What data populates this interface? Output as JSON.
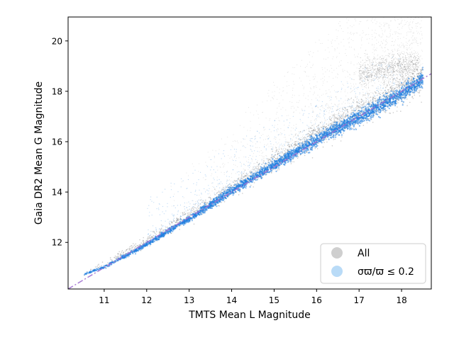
{
  "chart_data": {
    "type": "scatter",
    "title": "",
    "xlabel": "TMTS Mean L Magnitude",
    "ylabel": "Gaia DR2 Mean G Magnitude",
    "xlim": [
      10.15,
      18.7
    ],
    "ylim": [
      10.15,
      20.95
    ],
    "xticks": [
      11,
      12,
      13,
      14,
      15,
      16,
      17,
      18
    ],
    "yticks": [
      12,
      14,
      16,
      18,
      20
    ],
    "grid": false,
    "legend_position": "bottom-right",
    "series": [
      {
        "name": "All",
        "color": "#a8a8a8",
        "trend": {
          "x": [
            10.5,
            11,
            12,
            13,
            14,
            15,
            16,
            17,
            18,
            18.5
          ],
          "y": [
            10.7,
            11.1,
            12.0,
            13.0,
            14.0,
            15.1,
            16.1,
            17.0,
            17.9,
            18.4
          ]
        },
        "diffuse_cloud": {
          "x_range": [
            12.5,
            18.5
          ],
          "y_range": [
            13.5,
            20.8
          ]
        }
      },
      {
        "name": "σϖ/ϖ ≤ 0.2",
        "color": "#2080e0",
        "trend": {
          "x": [
            10.5,
            11,
            12,
            13,
            14,
            15,
            16,
            17,
            18,
            18.5
          ],
          "y": [
            10.7,
            11.0,
            11.9,
            12.9,
            14.0,
            15.0,
            16.0,
            16.9,
            17.8,
            18.4
          ]
        }
      }
    ],
    "reference_line": {
      "style": "dash-dot",
      "color": "#a070d0",
      "x": [
        10.15,
        18.7
      ],
      "y": [
        10.15,
        18.7
      ]
    }
  }
}
